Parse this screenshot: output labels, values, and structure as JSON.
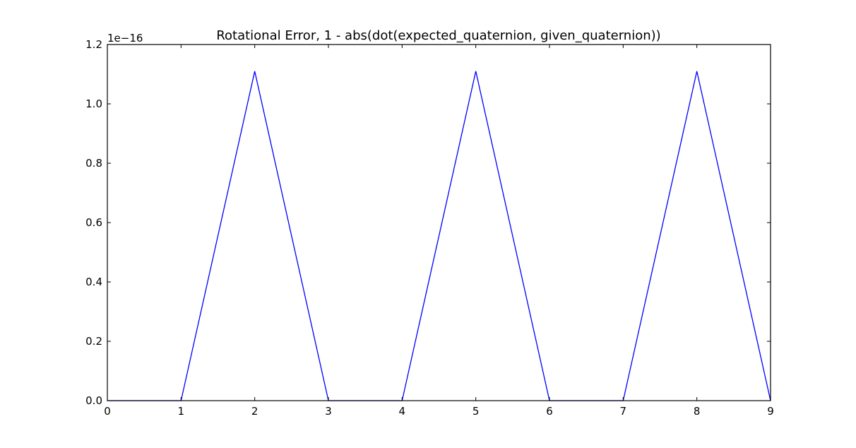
{
  "chart_data": {
    "type": "line",
    "title": "Rotational Error, 1 - abs(dot(expected_quaternion, given_quaternion))",
    "xlabel": "",
    "ylabel": "",
    "y_offset_label": "1e−16",
    "y_scale_exponent": -16,
    "xlim": [
      0,
      9
    ],
    "ylim": [
      0,
      1.2e-16
    ],
    "x_ticks": [
      0,
      1,
      2,
      3,
      4,
      5,
      6,
      7,
      8,
      9
    ],
    "x_tick_labels": [
      "0",
      "1",
      "2",
      "3",
      "4",
      "5",
      "6",
      "7",
      "8",
      "9"
    ],
    "y_ticks": [
      0,
      2e-17,
      4e-17,
      6e-17,
      8e-17,
      1e-16,
      1.2e-16
    ],
    "y_tick_labels": [
      "0.0",
      "0.2",
      "0.4",
      "0.6",
      "0.8",
      "1.0",
      "1.2"
    ],
    "grid": false,
    "series": [
      {
        "color": "#0000ff",
        "x": [
          0,
          1,
          2,
          3,
          4,
          5,
          6,
          7,
          8,
          9
        ],
        "y": [
          0,
          0,
          1.11e-16,
          0,
          0,
          1.11e-16,
          0,
          0,
          1.11e-16,
          0
        ]
      }
    ]
  }
}
